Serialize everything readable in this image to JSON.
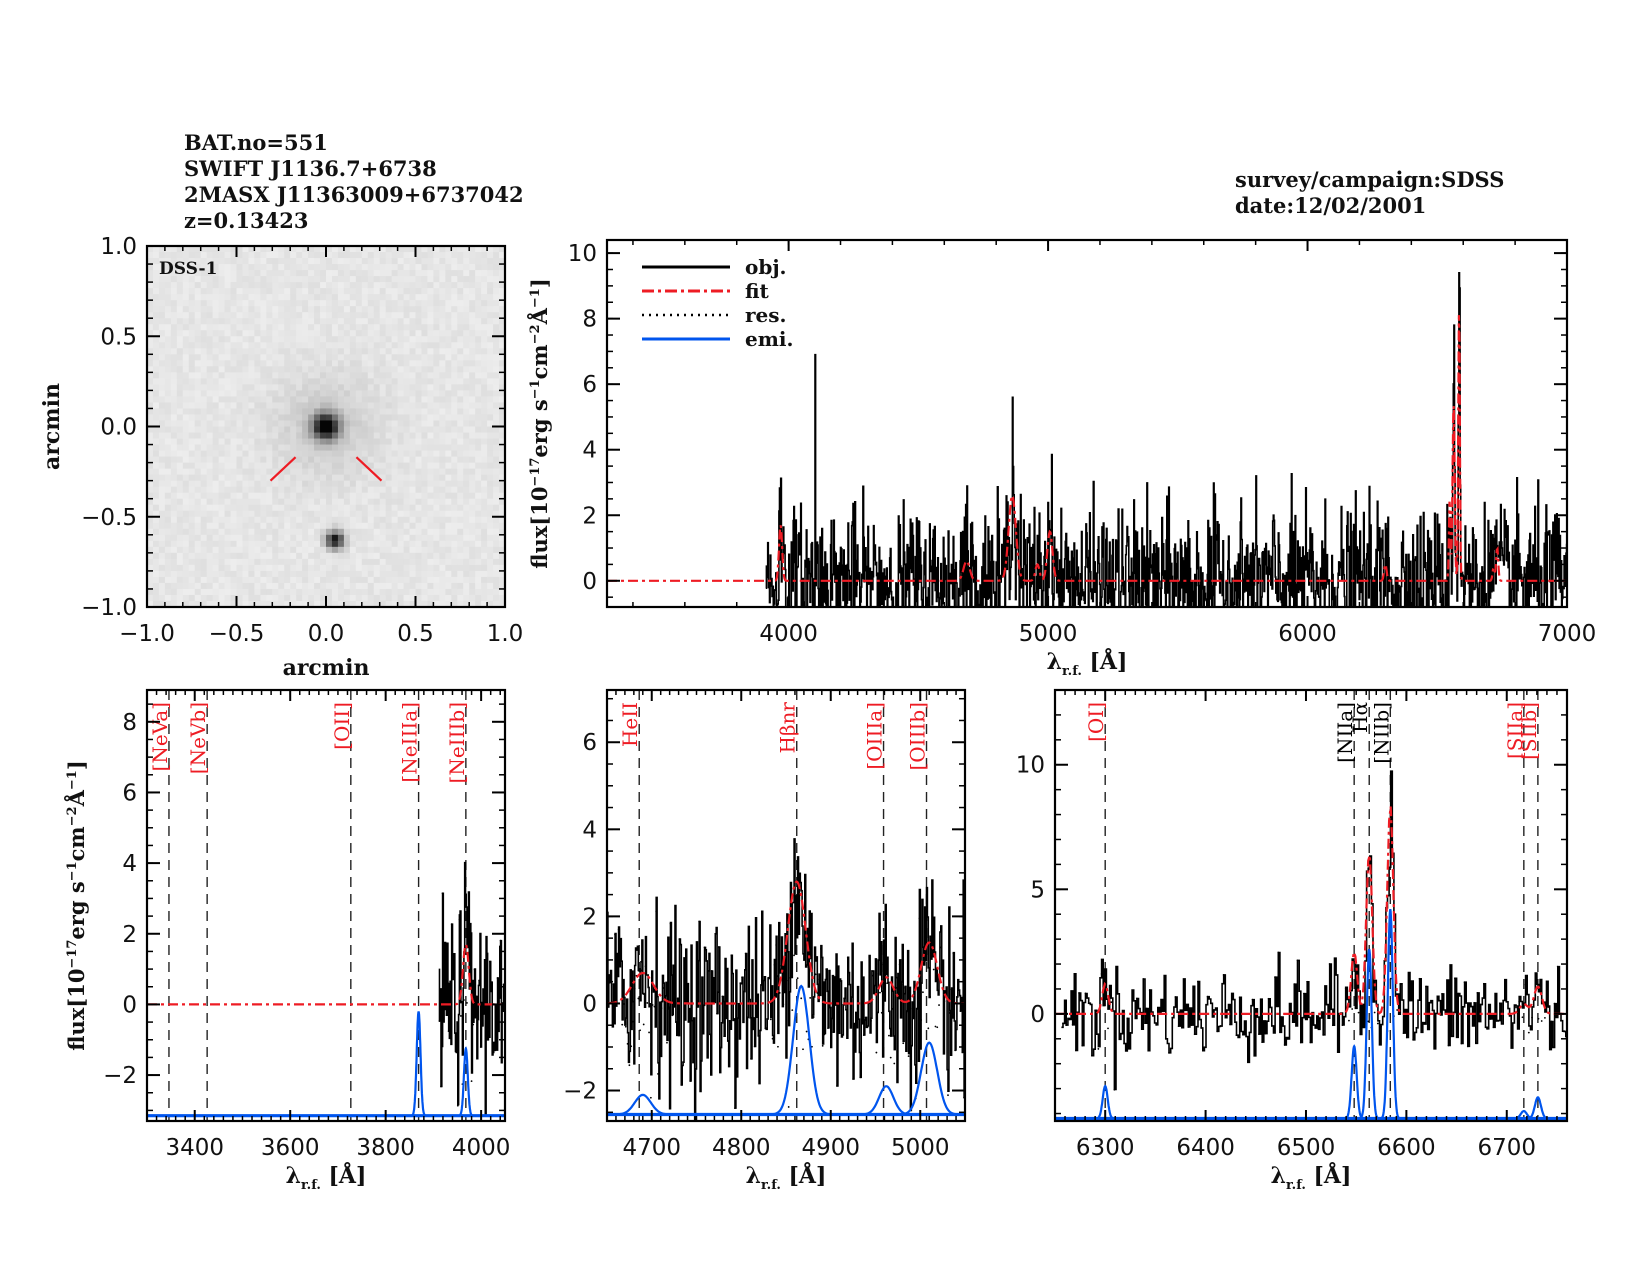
{
  "header": {
    "object_lines": [
      "BAT.no=551",
      "SWIFT J1136.7+6738",
      "2MASX J11363009+6737042",
      "z=0.13423"
    ],
    "observation_lines": [
      "survey/campaign:SDSS",
      "date:12/02/2001"
    ]
  },
  "colors": {
    "obj": "#000000",
    "fit": "#ee1c24",
    "res": "#000000",
    "emi": "#0055ee",
    "line_label_red": "#ee1c24",
    "line_label_black": "#000000",
    "axis": "#000000",
    "marker": "#ee1c24"
  },
  "chart_data": [
    {
      "id": "image",
      "type": "heatmap",
      "title": "DSS-1",
      "xlabel": "arcmin",
      "ylabel": "arcmin",
      "xlim": [
        -1.0,
        1.0
      ],
      "ylim": [
        -1.0,
        1.0
      ],
      "xticks": [
        "-1.0",
        "-0.5",
        "0.0",
        "0.5",
        "1.0"
      ],
      "yticks": [
        "-1.0",
        "-0.5",
        "0.0",
        "0.5",
        "1.0"
      ],
      "xtick_values": [
        -1.0,
        -0.5,
        0.0,
        0.5,
        1.0
      ],
      "ytick_values": [
        -1.0,
        -0.5,
        0.0,
        0.5,
        1.0
      ],
      "sources": [
        {
          "x": 0.0,
          "y": 0.0,
          "peak": 1.0,
          "sigma": 0.05
        },
        {
          "x": 0.05,
          "y": -0.63,
          "peak": 0.85,
          "sigma": 0.035
        }
      ],
      "halo": {
        "x": 0.0,
        "y": 0.0,
        "peak": 0.12,
        "sigma": 0.2
      },
      "marker_lines": [
        {
          "from": [
            -0.17,
            -0.17
          ],
          "to": [
            -0.31,
            -0.3
          ]
        },
        {
          "from": [
            0.17,
            -0.17
          ],
          "to": [
            0.31,
            -0.3
          ]
        }
      ]
    },
    {
      "id": "full",
      "type": "line",
      "xlabel": "λr.f. [Å]",
      "ylabel": "flux[10^-17 erg s^-1 cm^-2 Å^-1]",
      "xlim": [
        3300,
        7000
      ],
      "ylim": [
        -0.8,
        10.4
      ],
      "xticks": [
        "4000",
        "5000",
        "6000",
        "7000"
      ],
      "xtick_values": [
        4000,
        5000,
        6000,
        7000
      ],
      "yticks": [
        "0",
        "2",
        "4",
        "6",
        "8",
        "10"
      ],
      "ytick_values": [
        0,
        2,
        4,
        6,
        8,
        10
      ],
      "legend": {
        "placement": "top-left",
        "entries": [
          "obj.",
          "fit",
          "res.",
          "emi."
        ]
      },
      "data_start": 3910,
      "noise_sigma": 1.1,
      "peaks": [
        {
          "x": 4102,
          "y": 6.9
        },
        {
          "x": 4862,
          "y": 5.6
        },
        {
          "x": 6563,
          "y": 7.8
        },
        {
          "x": 6584,
          "y": 9.4
        }
      ],
      "fit_components": [
        {
          "x": 3969,
          "amp": 1.7,
          "sigma": 6
        },
        {
          "x": 4686,
          "amp": 0.6,
          "sigma": 12
        },
        {
          "x": 4862,
          "amp": 2.6,
          "sigma": 14
        },
        {
          "x": 4959,
          "amp": 0.5,
          "sigma": 8
        },
        {
          "x": 5007,
          "amp": 1.5,
          "sigma": 10
        },
        {
          "x": 6300,
          "amp": 0.5,
          "sigma": 5
        },
        {
          "x": 6548,
          "amp": 2.5,
          "sigma": 3
        },
        {
          "x": 6563,
          "amp": 5.5,
          "sigma": 4
        },
        {
          "x": 6584,
          "amp": 8.4,
          "sigma": 3
        },
        {
          "x": 6717,
          "amp": 0.4,
          "sigma": 4
        },
        {
          "x": 6731,
          "amp": 1.0,
          "sigma": 4
        }
      ]
    },
    {
      "id": "zoom1",
      "type": "line",
      "xlabel": "λr.f. [Å]",
      "ylabel": "flux[10^-17 erg s^-1 cm^-2 Å^-1]",
      "xlim": [
        3300,
        4050
      ],
      "ylim": [
        -3.3,
        8.9
      ],
      "xticks": [
        "3400",
        "3600",
        "3800",
        "4000"
      ],
      "xtick_values": [
        3400,
        3600,
        3800,
        4000
      ],
      "yticks": [
        "-2",
        "0",
        "2",
        "4",
        "6",
        "8"
      ],
      "ytick_values": [
        -2,
        0,
        2,
        4,
        6,
        8
      ],
      "data_start": 3910,
      "noise_sigma": 1.2,
      "emission_baseline": -3.15,
      "lines": [
        {
          "label": "[NeVa]",
          "x": 3346,
          "color": "red"
        },
        {
          "label": "[NeVb]",
          "x": 3426,
          "color": "red"
        },
        {
          "label": "[OII]",
          "x": 3727,
          "color": "red"
        },
        {
          "label": "[NeIIIa]",
          "x": 3869,
          "color": "red"
        },
        {
          "label": "[NeIIIb]",
          "x": 3968,
          "color": "red"
        }
      ],
      "emission": [
        {
          "x": 3869,
          "amp": 2.95,
          "sigma": 4
        },
        {
          "x": 3968,
          "amp": 1.9,
          "sigma": 4
        }
      ],
      "fit_components": [
        {
          "x": 3968,
          "amp": 1.7,
          "sigma": 6
        }
      ]
    },
    {
      "id": "zoom2",
      "type": "line",
      "xlabel": "λr.f. [Å]",
      "ylabel": "",
      "xlim": [
        4650,
        5050
      ],
      "ylim": [
        -2.7,
        7.2
      ],
      "xticks": [
        "4700",
        "4800",
        "4900",
        "5000"
      ],
      "xtick_values": [
        4700,
        4800,
        4900,
        5000
      ],
      "yticks": [
        "-2",
        "0",
        "2",
        "4",
        "6"
      ],
      "ytick_values": [
        -2,
        0,
        2,
        4,
        6
      ],
      "data_start": 4650,
      "noise_sigma": 1.0,
      "emission_baseline": -2.55,
      "lines": [
        {
          "label": "HeII",
          "x": 4686,
          "color": "red"
        },
        {
          "label": "Hβnr",
          "x": 4862,
          "color": "red"
        },
        {
          "label": "[OIIIa]",
          "x": 4959,
          "color": "red"
        },
        {
          "label": "[OIIIb]",
          "x": 5007,
          "color": "red"
        }
      ],
      "emission": [
        {
          "x": 4690,
          "amp": 0.45,
          "sigma": 9
        },
        {
          "x": 4867,
          "amp": 2.95,
          "sigma": 9
        },
        {
          "x": 4962,
          "amp": 0.65,
          "sigma": 8
        },
        {
          "x": 5010,
          "amp": 1.65,
          "sigma": 9
        }
      ],
      "fit_components": [
        {
          "x": 4690,
          "amp": 0.7,
          "sigma": 12
        },
        {
          "x": 4862,
          "amp": 2.8,
          "sigma": 10
        },
        {
          "x": 4962,
          "amp": 0.6,
          "sigma": 8
        },
        {
          "x": 5010,
          "amp": 1.4,
          "sigma": 9
        }
      ]
    },
    {
      "id": "zoom3",
      "type": "line",
      "xlabel": "λr.f. [Å]",
      "ylabel": "",
      "xlim": [
        6250,
        6760
      ],
      "ylim": [
        -4.3,
        13.0
      ],
      "xticks": [
        "6300",
        "6400",
        "6500",
        "6600",
        "6700"
      ],
      "xtick_values": [
        6300,
        6400,
        6500,
        6600,
        6700
      ],
      "yticks": [
        "0",
        "5",
        "10"
      ],
      "ytick_values": [
        0,
        5,
        10
      ],
      "data_start": 6255,
      "noise_sigma": 0.9,
      "emission_baseline": -4.2,
      "lines": [
        {
          "label": "[OI]",
          "x": 6300,
          "color": "red"
        },
        {
          "label": "[NIIa]",
          "x": 6548,
          "color": "black"
        },
        {
          "label": "Hα",
          "x": 6563,
          "color": "black"
        },
        {
          "label": "[NIIb]",
          "x": 6584,
          "color": "black"
        },
        {
          "label": "[SIIa]",
          "x": 6717,
          "color": "red"
        },
        {
          "label": "[SIIb]",
          "x": 6731,
          "color": "red"
        }
      ],
      "emission": [
        {
          "x": 6300,
          "amp": 1.3,
          "sigma": 2.5
        },
        {
          "x": 6548,
          "amp": 2.9,
          "sigma": 2.5
        },
        {
          "x": 6563,
          "amp": 6.8,
          "sigma": 2.5
        },
        {
          "x": 6584,
          "amp": 8.4,
          "sigma": 2.5
        },
        {
          "x": 6717,
          "amp": 0.3,
          "sigma": 3
        },
        {
          "x": 6731,
          "amp": 0.85,
          "sigma": 3
        }
      ],
      "fit_components": [
        {
          "x": 6300,
          "amp": 1.2,
          "sigma": 3
        },
        {
          "x": 6548,
          "amp": 2.5,
          "sigma": 3
        },
        {
          "x": 6563,
          "amp": 6.5,
          "sigma": 3
        },
        {
          "x": 6584,
          "amp": 8.4,
          "sigma": 3
        },
        {
          "x": 6717,
          "amp": 0.4,
          "sigma": 4
        },
        {
          "x": 6731,
          "amp": 1.1,
          "sigma": 4
        }
      ]
    }
  ]
}
